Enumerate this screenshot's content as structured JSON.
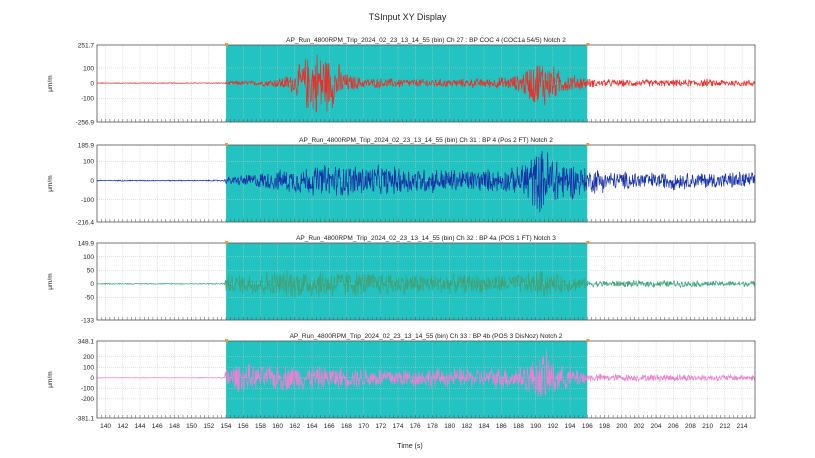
{
  "window": {
    "title": "TSInput XY Display"
  },
  "chart_data": {
    "type": "line",
    "xlabel": "Time (s)",
    "xlim": [
      139,
      215.5
    ],
    "x_ticks": [
      140,
      142,
      144,
      146,
      148,
      150,
      152,
      154,
      156,
      158,
      160,
      162,
      164,
      166,
      168,
      170,
      172,
      174,
      176,
      178,
      180,
      182,
      184,
      186,
      188,
      190,
      192,
      194,
      196,
      198,
      200,
      202,
      204,
      206,
      208,
      210,
      212,
      214
    ],
    "highlight_range": [
      154,
      196
    ],
    "colors": {
      "highlight": "#22c3c0",
      "grid": "#c8c8c8"
    },
    "panels": [
      {
        "title": "AP_Run_4800RPM_Trip_2024_02_23_13_14_55 (bin)  Ch 27 : BP COC 4 (COC1a 54/5) Notch 2",
        "ylabel": "μm/m",
        "ylim": [
          -256.9,
          251.7
        ],
        "y_ticks": [
          {
            "v": 251.7,
            "label": "251.7"
          },
          {
            "v": 100,
            "label": "100"
          },
          {
            "v": 0,
            "label": "0"
          },
          {
            "v": -100,
            "label": "-100"
          },
          {
            "v": -256.9,
            "label": "-256.9"
          }
        ],
        "color": "#e8302a",
        "envelope": [
          [
            139,
            3
          ],
          [
            150,
            3
          ],
          [
            153.8,
            4
          ],
          [
            154,
            12
          ],
          [
            158,
            18
          ],
          [
            160,
            35
          ],
          [
            162,
            80
          ],
          [
            163,
            180
          ],
          [
            164,
            230
          ],
          [
            165,
            251
          ],
          [
            166,
            200
          ],
          [
            167,
            150
          ],
          [
            168,
            70
          ],
          [
            170,
            38
          ],
          [
            175,
            32
          ],
          [
            180,
            30
          ],
          [
            185,
            35
          ],
          [
            188,
            60
          ],
          [
            189,
            120
          ],
          [
            190,
            165
          ],
          [
            191,
            185
          ],
          [
            192,
            130
          ],
          [
            193,
            75
          ],
          [
            195.5,
            50
          ],
          [
            196,
            35
          ],
          [
            197,
            28
          ],
          [
            205,
            25
          ],
          [
            210,
            28
          ],
          [
            215.5,
            24
          ]
        ]
      },
      {
        "title": "AP_Run_4800RPM_Trip_2024_02_23_13_14_55 (bin)  Ch 31 : BP 4 (Pos 2 FT) Notch 2",
        "ylabel": "μm/m",
        "ylim": [
          -216.4,
          185.9
        ],
        "y_ticks": [
          {
            "v": 185.9,
            "label": "185.9"
          },
          {
            "v": 100,
            "label": "100"
          },
          {
            "v": 0,
            "label": "0"
          },
          {
            "v": -100,
            "label": "-100"
          },
          {
            "v": -216.4,
            "label": "-216.4"
          }
        ],
        "color": "#1630a6",
        "envelope": [
          [
            139,
            3
          ],
          [
            150,
            3
          ],
          [
            153.8,
            4
          ],
          [
            154,
            20
          ],
          [
            157,
            40
          ],
          [
            160,
            60
          ],
          [
            163,
            80
          ],
          [
            166,
            95
          ],
          [
            170,
            90
          ],
          [
            174,
            80
          ],
          [
            178,
            72
          ],
          [
            182,
            65
          ],
          [
            186,
            65
          ],
          [
            188,
            78
          ],
          [
            189,
            150
          ],
          [
            191,
            186
          ],
          [
            192,
            175
          ],
          [
            193,
            120
          ],
          [
            195.5,
            90
          ],
          [
            196,
            60
          ],
          [
            197,
            80
          ],
          [
            199,
            50
          ],
          [
            202,
            55
          ],
          [
            204,
            45
          ],
          [
            206,
            55
          ],
          [
            208,
            45
          ],
          [
            210,
            50
          ],
          [
            212,
            45
          ],
          [
            214,
            55
          ],
          [
            215.5,
            40
          ]
        ]
      },
      {
        "title": "AP_Run_4800RPM_Trip_2024_02_23_13_14_55 (bin)  Ch 32 : BP 4a (POS 1 FT) Notch 3",
        "ylabel": "μm/m",
        "ylim": [
          -133,
          149.9
        ],
        "y_ticks": [
          {
            "v": 149.9,
            "label": "149.9"
          },
          {
            "v": 100,
            "label": "100"
          },
          {
            "v": 50,
            "label": "50"
          },
          {
            "v": 0,
            "label": "0"
          },
          {
            "v": -50,
            "label": "-50"
          },
          {
            "v": -133,
            "label": "-133"
          }
        ],
        "color": "#3fa37a",
        "envelope": [
          [
            139,
            2
          ],
          [
            150,
            2
          ],
          [
            153.8,
            3
          ],
          [
            154,
            35
          ],
          [
            157,
            45
          ],
          [
            160,
            55
          ],
          [
            163,
            60
          ],
          [
            166,
            58
          ],
          [
            170,
            50
          ],
          [
            175,
            45
          ],
          [
            180,
            40
          ],
          [
            185,
            38
          ],
          [
            188,
            38
          ],
          [
            190,
            50
          ],
          [
            191,
            60
          ],
          [
            192,
            42
          ],
          [
            195.5,
            28
          ],
          [
            196,
            14
          ],
          [
            200,
            13
          ],
          [
            205,
            14
          ],
          [
            210,
            12
          ],
          [
            215.5,
            12
          ]
        ]
      },
      {
        "title": "AP_Run_4800RPM_Trip_2024_02_23_13_14_55 (bin)  Ch 33 : BP 4b (POS 3 DisNoz) Notch 2",
        "ylabel": "μm/m",
        "ylim": [
          -381.1,
          348.1
        ],
        "y_ticks": [
          {
            "v": 348.1,
            "label": "348.1"
          },
          {
            "v": 200,
            "label": "200"
          },
          {
            "v": 100,
            "label": "100"
          },
          {
            "v": 0,
            "label": "0"
          },
          {
            "v": -100,
            "label": "-100"
          },
          {
            "v": -200,
            "label": "-200"
          },
          {
            "v": -381.1,
            "label": "-381.1"
          }
        ],
        "color": "#ee7fd2",
        "envelope": [
          [
            139,
            3
          ],
          [
            150,
            3
          ],
          [
            153.8,
            5
          ],
          [
            154,
            130
          ],
          [
            156,
            150
          ],
          [
            158,
            120
          ],
          [
            160,
            140
          ],
          [
            163,
            130
          ],
          [
            166,
            115
          ],
          [
            170,
            110
          ],
          [
            175,
            105
          ],
          [
            180,
            100
          ],
          [
            185,
            110
          ],
          [
            188,
            130
          ],
          [
            190,
            200
          ],
          [
            191,
            300
          ],
          [
            192,
            200
          ],
          [
            193,
            130
          ],
          [
            195.5,
            90
          ],
          [
            196,
            45
          ],
          [
            198,
            40
          ],
          [
            202,
            35
          ],
          [
            206,
            40
          ],
          [
            210,
            35
          ],
          [
            215.5,
            30
          ]
        ]
      }
    ]
  }
}
